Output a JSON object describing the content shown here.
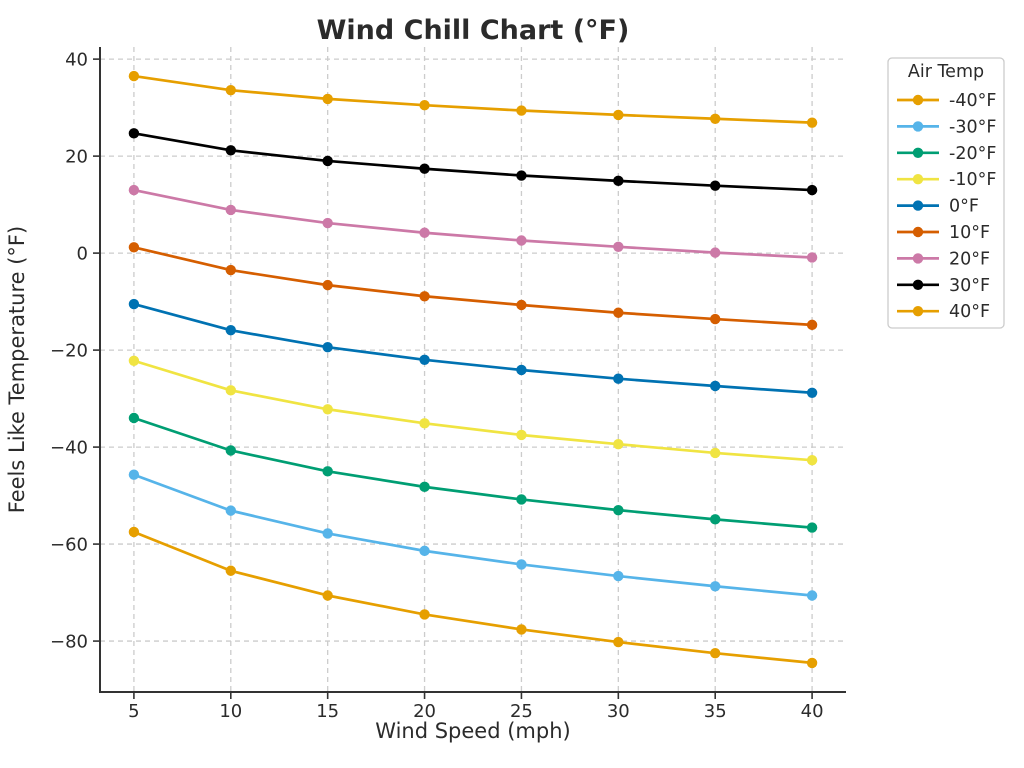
{
  "figure": {
    "background": "#ffffff"
  },
  "style": {
    "grid_color": "#cccccc",
    "spine_color": "#333333",
    "tick_color": "#333333",
    "text_color": "#2b2b2b",
    "legend_border_color": "#cccccc",
    "legend_background": "#ffffff"
  },
  "chart_data": {
    "type": "line",
    "title": "Wind Chill Chart (°F)",
    "xlabel": "Wind Speed (mph)",
    "ylabel": "Feels Like Temperature (°F)",
    "x": [
      5,
      10,
      15,
      20,
      25,
      30,
      35,
      40
    ],
    "xticks": [
      5,
      10,
      15,
      20,
      25,
      30,
      35,
      40
    ],
    "yticks": [
      40,
      20,
      0,
      -20,
      -40,
      -60,
      -80
    ],
    "xlim": [
      3.25,
      41.75
    ],
    "ylim": [
      -90.5,
      42.5
    ],
    "grid": true,
    "grid_style": "dashed",
    "legend": {
      "title": "Air Temp",
      "position": "upper-right-outside"
    },
    "series": [
      {
        "name": "-40°F",
        "color": "#E69F00",
        "values": [
          -57.5,
          -65.5,
          -70.6,
          -74.5,
          -77.6,
          -80.2,
          -82.5,
          -84.5
        ]
      },
      {
        "name": "-30°F",
        "color": "#56B4E9",
        "values": [
          -45.7,
          -53.1,
          -57.8,
          -61.4,
          -64.2,
          -66.6,
          -68.7,
          -70.6
        ]
      },
      {
        "name": "-20°F",
        "color": "#009E73",
        "values": [
          -34.0,
          -40.7,
          -45.0,
          -48.2,
          -50.8,
          -53.0,
          -54.9,
          -56.6
        ]
      },
      {
        "name": "-10°F",
        "color": "#F0E442",
        "values": [
          -22.2,
          -28.3,
          -32.2,
          -35.1,
          -37.5,
          -39.4,
          -41.2,
          -42.7
        ]
      },
      {
        "name": "0°F",
        "color": "#0072B2",
        "values": [
          -10.5,
          -15.9,
          -19.4,
          -22.0,
          -24.1,
          -25.9,
          -27.4,
          -28.8
        ]
      },
      {
        "name": "10°F",
        "color": "#D55E00",
        "values": [
          1.2,
          -3.5,
          -6.6,
          -8.9,
          -10.7,
          -12.3,
          -13.6,
          -14.8
        ]
      },
      {
        "name": "20°F",
        "color": "#CC79A7",
        "values": [
          13.0,
          8.9,
          6.2,
          4.2,
          2.6,
          1.3,
          0.1,
          -0.9
        ]
      },
      {
        "name": "30°F",
        "color": "#000000",
        "values": [
          24.7,
          21.2,
          19.0,
          17.4,
          16.0,
          14.9,
          13.9,
          13.0
        ]
      },
      {
        "name": "40°F",
        "color": "#E69F00",
        "values": [
          36.5,
          33.6,
          31.8,
          30.5,
          29.4,
          28.5,
          27.7,
          26.9
        ]
      }
    ]
  }
}
